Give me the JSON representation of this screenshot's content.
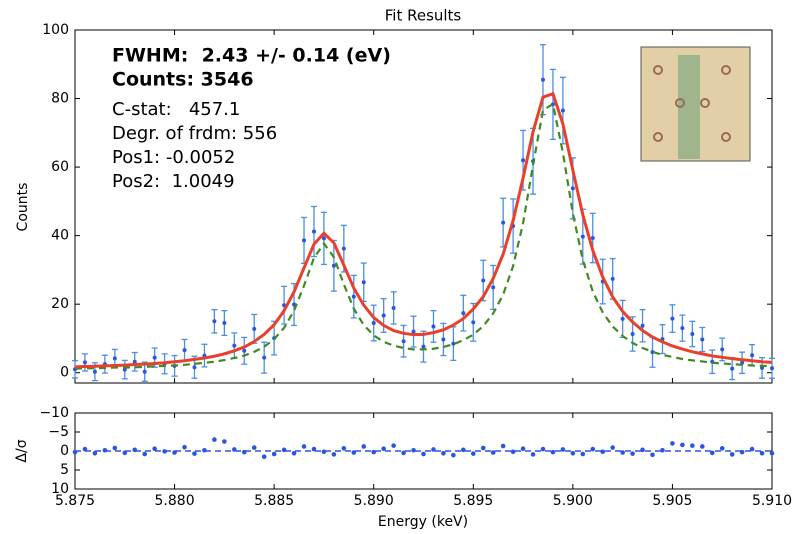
{
  "chart_data": [
    {
      "type": "spectrum",
      "title": "Fit Results",
      "y_label": "Counts",
      "annotations": [
        "FWHM:  2.43 +/- 0.14 (eV)",
        "Counts: 3546",
        "C-stat:   457.1",
        "Degr. of frdm: 556",
        "Pos1: -0.0052",
        "Pos2:  1.0049"
      ],
      "x": [
        5.875,
        5.8755,
        5.876,
        5.8765,
        5.877,
        5.8775,
        5.878,
        5.8785,
        5.879,
        5.8795,
        5.88,
        5.8805,
        5.881,
        5.8815,
        5.882,
        5.8825,
        5.883,
        5.8835,
        5.884,
        5.8845,
        5.885,
        5.8855,
        5.886,
        5.8865,
        5.887,
        5.8875,
        5.888,
        5.8885,
        5.889,
        5.8895,
        5.89,
        5.8905,
        5.891,
        5.8915,
        5.892,
        5.8925,
        5.893,
        5.8935,
        5.894,
        5.8945,
        5.895,
        5.8955,
        5.896,
        5.8965,
        5.897,
        5.8975,
        5.898,
        5.8985,
        5.899,
        5.8995,
        5.9,
        5.9005,
        5.901,
        5.9015,
        5.902,
        5.9025,
        5.903,
        5.9035,
        5.904,
        5.9045,
        5.905,
        5.9055,
        5.906,
        5.9065,
        5.907,
        5.9075,
        5.908,
        5.9085,
        5.909,
        5.9095,
        5.91
      ],
      "series": [
        {
          "style": "errorbar",
          "color": "#2a55e0",
          "error_color": "#4a8fe0",
          "values": [
            1.0,
            3.0,
            0.3,
            2.5,
            4.2,
            0.9,
            3.2,
            0.3,
            4.4,
            2.6,
            2.0,
            6.6,
            1.6,
            5.0,
            15.0,
            14.5,
            7.9,
            6.4,
            12.8,
            4.4,
            10.1,
            19.7,
            19.9,
            38.6,
            41.2,
            39.2,
            31.2,
            36.2,
            22.2,
            26.4,
            14.5,
            16.7,
            18.9,
            9.2,
            12.0,
            7.6,
            13.5,
            9.7,
            8.5,
            17.4,
            14.7,
            26.9,
            24.9,
            43.8,
            42.8,
            62.0,
            61.7,
            85.5,
            78.3,
            76.5,
            53.8,
            39.7,
            39.3,
            26.6,
            27.4,
            15.7,
            11.3,
            13.7,
            6.0,
            9.8,
            15.8,
            13.0,
            11.3,
            9.7,
            3.2,
            6.8,
            1.2,
            2.9,
            5.1,
            1.4,
            1.3
          ],
          "errors": [
            2.5,
            2.5,
            2.6,
            2.6,
            2.6,
            2.7,
            2.7,
            2.8,
            2.8,
            2.9,
            3.0,
            3.1,
            3.2,
            3.3,
            3.4,
            3.6,
            3.7,
            3.9,
            4.2,
            4.5,
            4.9,
            5.5,
            6.1,
            6.7,
            7.3,
            7.6,
            7.4,
            6.8,
            6.2,
            5.6,
            5.2,
            4.9,
            4.7,
            4.6,
            4.5,
            4.5,
            4.6,
            4.7,
            4.9,
            5.2,
            5.5,
            5.9,
            6.4,
            7.1,
            7.9,
            8.7,
            9.6,
            10.2,
            10.2,
            9.7,
            8.9,
            8.0,
            7.2,
            6.5,
            5.9,
            5.4,
            5.0,
            4.7,
            4.4,
            4.2,
            4.0,
            3.8,
            3.7,
            3.5,
            3.4,
            3.3,
            3.2,
            3.1,
            3.1,
            3.0,
            2.9
          ]
        },
        {
          "style": "dashed",
          "color": "#3f8a22",
          "values": [
            1.2,
            1.3,
            1.3,
            1.4,
            1.5,
            1.5,
            1.6,
            1.7,
            1.9,
            2.0,
            2.1,
            2.3,
            2.6,
            2.9,
            3.2,
            3.7,
            4.3,
            5.0,
            6.1,
            7.6,
            9.8,
            13.1,
            18.1,
            25.4,
            33.5,
            37.7,
            33.7,
            25.8,
            18.7,
            13.9,
            10.9,
            9.0,
            7.9,
            7.2,
            6.8,
            6.8,
            7.0,
            7.5,
            8.3,
            9.5,
            11.1,
            13.6,
            17.3,
            22.8,
            31.1,
            43.6,
            60.6,
            76.6,
            78.4,
            64.2,
            46.5,
            32.9,
            23.7,
            17.6,
            13.5,
            10.7,
            8.7,
            7.2,
            6.1,
            5.2,
            4.6,
            4.0,
            3.6,
            3.3,
            2.9,
            2.7,
            2.5,
            2.3,
            2.1,
            2.0,
            1.9
          ]
        },
        {
          "style": "solid",
          "color": "#e8402a",
          "values": [
            1.7,
            1.8,
            1.9,
            2.0,
            2.1,
            2.2,
            2.4,
            2.5,
            2.7,
            2.9,
            3.2,
            3.5,
            3.9,
            4.3,
            4.8,
            5.5,
            6.4,
            7.5,
            9.1,
            11.2,
            14.0,
            18.1,
            23.6,
            30.6,
            37.5,
            40.7,
            37.9,
            31.4,
            24.7,
            19.7,
            16.1,
            13.8,
            12.3,
            11.5,
            11.1,
            11.2,
            11.7,
            12.5,
            13.9,
            15.8,
            18.6,
            22.2,
            27.5,
            34.6,
            44.4,
            56.8,
            70.3,
            80.4,
            81.4,
            72.6,
            59.1,
            46.1,
            35.7,
            27.9,
            22.1,
            17.9,
            14.8,
            12.3,
            10.4,
            9.0,
            7.8,
            6.9,
            6.1,
            5.5,
            4.9,
            4.5,
            4.1,
            3.8,
            3.5,
            3.2,
            3.0
          ]
        }
      ],
      "xlim": [
        5.875,
        5.91
      ],
      "ylim": [
        -3,
        100
      ],
      "yticks": [
        0,
        20,
        40,
        60,
        80,
        100
      ]
    },
    {
      "type": "scatter",
      "y_label": "Δ/σ",
      "x_label": "Energy (keV)",
      "color": "#2a55e0",
      "zero_line_color": "#2a55e0",
      "x": [
        5.875,
        5.8755,
        5.876,
        5.8765,
        5.877,
        5.8775,
        5.878,
        5.8785,
        5.879,
        5.8795,
        5.88,
        5.8805,
        5.881,
        5.8815,
        5.882,
        5.8825,
        5.883,
        5.8835,
        5.884,
        5.8845,
        5.885,
        5.8855,
        5.886,
        5.8865,
        5.887,
        5.8875,
        5.888,
        5.8885,
        5.889,
        5.8895,
        5.89,
        5.8905,
        5.891,
        5.8915,
        5.892,
        5.8925,
        5.893,
        5.8935,
        5.894,
        5.8945,
        5.895,
        5.8955,
        5.896,
        5.8965,
        5.897,
        5.8975,
        5.898,
        5.8985,
        5.899,
        5.8995,
        5.9,
        5.9005,
        5.901,
        5.9015,
        5.902,
        5.9025,
        5.903,
        5.9035,
        5.904,
        5.9045,
        5.905,
        5.9055,
        5.906,
        5.9065,
        5.907,
        5.9075,
        5.908,
        5.9085,
        5.909,
        5.9095,
        5.91
      ],
      "values": [
        0.3,
        -0.5,
        0.6,
        -0.2,
        -0.8,
        0.5,
        -0.3,
        0.8,
        -0.6,
        0.1,
        0.4,
        -1.0,
        0.7,
        -0.2,
        -3.0,
        -2.5,
        -0.4,
        0.3,
        -0.9,
        1.5,
        0.8,
        -0.3,
        0.6,
        -1.2,
        -0.5,
        0.2,
        0.9,
        -0.7,
        0.4,
        -1.2,
        0.3,
        -0.6,
        -1.4,
        0.5,
        -0.2,
        0.8,
        -0.4,
        0.6,
        1.1,
        -0.3,
        0.7,
        -0.8,
        0.4,
        -1.3,
        0.2,
        -0.6,
        0.9,
        -0.5,
        0.3,
        -0.4,
        0.6,
        0.8,
        -0.5,
        0.2,
        -0.9,
        0.4,
        0.7,
        -0.3,
        1.0,
        -0.2,
        -2.0,
        -1.6,
        -1.4,
        -1.2,
        0.5,
        -0.7,
        0.9,
        0.3,
        -0.5,
        0.6,
        0.6
      ],
      "xlim": [
        5.875,
        5.91
      ],
      "xticks": [
        5.875,
        {
          "value": 5.88,
          "label": "5.880"
        },
        5.885,
        {
          "value": 5.89,
          "label": "5.890"
        },
        5.895,
        {
          "value": 5.9,
          "label": "5.900"
        },
        5.905,
        {
          "value": 5.91,
          "label": "5.910"
        }
      ],
      "ylim": [
        10,
        -10
      ],
      "yticks": [
        {
          "value": -10,
          "label": "−10"
        },
        {
          "value": -5,
          "label": "−5"
        },
        0,
        5,
        10
      ]
    }
  ]
}
